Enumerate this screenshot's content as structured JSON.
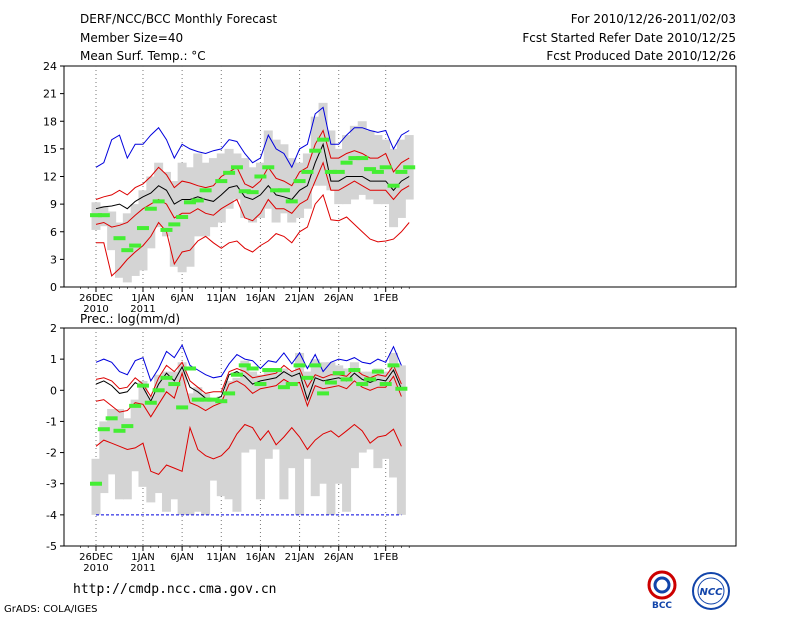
{
  "header": {
    "title": "DERF/NCC/BCC Monthly Forecast",
    "member": "Member Size=40",
    "var1": "Mean Surf. Temp.: °C",
    "period": "For 2010/12/26-2011/02/03",
    "fcst_start": "Fcst Started Refer Date 2010/12/25",
    "fcst_prod": "Fcst Produced Date 2010/12/26"
  },
  "footer": {
    "url": "http://cmdp.ncc.cma.gov.cn",
    "grads": "GrADS: COLA/IGES"
  },
  "logos": {
    "bcc": "BCC",
    "ncc": "NCC"
  },
  "colors": {
    "bar": "#d4d4d4",
    "green": "#44ee33",
    "blue": "#0000dd",
    "red": "#dd0000",
    "black": "#000000"
  },
  "chart_data": [
    {
      "type": "line",
      "title": "Mean Surf. Temp.: °C",
      "ylim": [
        0,
        24
      ],
      "yticks": [
        0,
        3,
        6,
        9,
        12,
        15,
        18,
        21,
        24
      ],
      "xticks": [
        {
          "day": 0,
          "label": "26DEC",
          "sub": "2010"
        },
        {
          "day": 6,
          "label": "1JAN",
          "sub": "2011"
        },
        {
          "day": 11,
          "label": "6JAN",
          "sub": ""
        },
        {
          "day": 16,
          "label": "11JAN",
          "sub": ""
        },
        {
          "day": 21,
          "label": "16JAN",
          "sub": ""
        },
        {
          "day": 26,
          "label": "21JAN",
          "sub": ""
        },
        {
          "day": 31,
          "label": "26JAN",
          "sub": ""
        },
        {
          "day": 37,
          "label": "1FEB",
          "sub": ""
        }
      ],
      "series": [
        {
          "name": "max",
          "values": [
            13.0,
            13.5,
            16.0,
            16.5,
            14.0,
            15.5,
            15.5,
            16.5,
            17.3,
            16.0,
            14.0,
            15.5,
            15.0,
            14.7,
            14.5,
            14.8,
            15.0,
            16.0,
            15.8,
            14.5,
            13.5,
            14.0,
            16.5,
            15.0,
            14.5,
            13.0,
            15.0,
            15.5,
            18.8,
            19.5,
            15.5,
            15.5,
            16.5,
            17.3,
            17.3,
            17.0,
            16.8,
            17.0,
            15.0,
            16.5,
            17.0
          ]
        },
        {
          "name": "upper",
          "values": [
            9.5,
            9.8,
            10.0,
            10.5,
            10.0,
            10.8,
            11.2,
            12.0,
            13.0,
            12.2,
            10.8,
            11.5,
            11.3,
            11.0,
            10.8,
            11.0,
            12.0,
            12.5,
            13.0,
            11.2,
            10.8,
            11.5,
            13.0,
            11.8,
            11.5,
            11.0,
            12.5,
            13.0,
            15.5,
            17.0,
            14.0,
            14.0,
            14.5,
            14.8,
            14.5,
            14.0,
            14.0,
            14.5,
            12.5,
            13.5,
            14.0
          ]
        },
        {
          "name": "mean",
          "values": [
            8.5,
            8.7,
            8.8,
            9.0,
            8.5,
            9.3,
            9.8,
            10.2,
            11.0,
            10.5,
            9.0,
            9.5,
            9.5,
            9.8,
            9.5,
            9.3,
            10.0,
            10.8,
            11.0,
            9.8,
            9.5,
            10.0,
            11.0,
            10.0,
            9.8,
            9.5,
            10.5,
            11.0,
            13.5,
            15.5,
            11.5,
            11.5,
            12.0,
            12.0,
            12.0,
            11.5,
            11.5,
            11.5,
            10.5,
            11.5,
            12.0
          ]
        },
        {
          "name": "lower",
          "values": [
            6.8,
            7.0,
            6.5,
            6.7,
            7.0,
            7.8,
            8.5,
            9.0,
            9.5,
            9.0,
            7.5,
            8.0,
            8.0,
            8.5,
            8.0,
            7.8,
            8.5,
            9.0,
            9.5,
            7.5,
            7.2,
            8.0,
            9.5,
            8.5,
            8.5,
            8.0,
            9.0,
            9.5,
            11.5,
            13.5,
            10.5,
            10.5,
            11.0,
            11.5,
            11.0,
            10.5,
            10.5,
            10.5,
            9.5,
            10.5,
            11.0
          ]
        },
        {
          "name": "min",
          "values": [
            4.8,
            4.8,
            1.2,
            2.0,
            3.0,
            3.8,
            4.5,
            5.5,
            7.0,
            6.0,
            2.5,
            3.8,
            4.0,
            5.0,
            5.5,
            4.8,
            4.2,
            4.8,
            5.0,
            4.2,
            3.8,
            4.5,
            5.0,
            5.8,
            5.5,
            4.8,
            6.0,
            6.5,
            9.0,
            10.0,
            7.3,
            7.2,
            7.6,
            6.8,
            6.0,
            5.2,
            4.9,
            5.0,
            5.2,
            6.0,
            7.0
          ]
        },
        {
          "name": "observed",
          "values": [
            7.8,
            7.8,
            null,
            5.3,
            4.0,
            4.5,
            6.4,
            8.5,
            9.3,
            6.2,
            6.8,
            7.6,
            9.2,
            9.4,
            10.5,
            null,
            11.5,
            12.4,
            13.0,
            10.4,
            10.3,
            12.0,
            13.0,
            10.5,
            10.5,
            9.3,
            11.5,
            12.5,
            14.8,
            16.0,
            12.5,
            12.5,
            13.5,
            14.0,
            14.0,
            12.8,
            12.5,
            13.0,
            11.0,
            12.5,
            13.0
          ]
        }
      ],
      "ranges": [
        [
          6.2,
          9.2
        ],
        [
          6.6,
          8.8
        ],
        [
          4.0,
          8.2
        ],
        [
          1.0,
          7.0
        ],
        [
          0.5,
          8.0
        ],
        [
          1.2,
          9.0
        ],
        [
          1.8,
          10.5
        ],
        [
          4.2,
          12.0
        ],
        [
          6.5,
          13.5
        ],
        [
          5.5,
          12.5
        ],
        [
          2.2,
          11.5
        ],
        [
          1.6,
          13.5
        ],
        [
          2.2,
          13.0
        ],
        [
          5.5,
          14.5
        ],
        [
          5.5,
          13.5
        ],
        [
          6.5,
          14.0
        ],
        [
          7.0,
          14.5
        ],
        [
          8.5,
          15.0
        ],
        [
          9.5,
          14.5
        ],
        [
          7.5,
          14.0
        ],
        [
          7.0,
          13.0
        ],
        [
          7.5,
          13.5
        ],
        [
          8.5,
          17.0
        ],
        [
          7.0,
          16.0
        ],
        [
          8.0,
          15.5
        ],
        [
          7.0,
          14.0
        ],
        [
          7.5,
          13.5
        ],
        [
          8.5,
          14.5
        ],
        [
          11.0,
          18.5
        ],
        [
          11.0,
          20.0
        ],
        [
          10.5,
          17.0
        ],
        [
          9.0,
          15.0
        ],
        [
          9.0,
          16.5
        ],
        [
          9.5,
          17.5
        ],
        [
          10.0,
          18.0
        ],
        [
          9.5,
          17.0
        ],
        [
          9.0,
          16.5
        ],
        [
          9.0,
          16.0
        ],
        [
          6.5,
          15.0
        ],
        [
          7.5,
          16.0
        ],
        [
          9.5,
          16.5
        ]
      ]
    },
    {
      "type": "line",
      "title": "Prec.: log(mm/d)",
      "ylim": [
        -5,
        2
      ],
      "yticks": [
        -5,
        -4,
        -3,
        -2,
        -1,
        0,
        1,
        2
      ],
      "xticks": [
        {
          "day": 0,
          "label": "26DEC",
          "sub": "2010"
        },
        {
          "day": 6,
          "label": "1JAN",
          "sub": "2011"
        },
        {
          "day": 11,
          "label": "6JAN",
          "sub": ""
        },
        {
          "day": 16,
          "label": "11JAN",
          "sub": ""
        },
        {
          "day": 21,
          "label": "16JAN",
          "sub": ""
        },
        {
          "day": 26,
          "label": "21JAN",
          "sub": ""
        },
        {
          "day": 31,
          "label": "26JAN",
          "sub": ""
        },
        {
          "day": 37,
          "label": "1FEB",
          "sub": ""
        }
      ],
      "series": [
        {
          "name": "max",
          "values": [
            0.9,
            1.0,
            0.9,
            0.6,
            0.5,
            0.95,
            1.05,
            0.3,
            0.7,
            1.25,
            1.05,
            1.45,
            0.8,
            0.65,
            0.5,
            0.4,
            0.45,
            0.85,
            1.15,
            1.0,
            0.95,
            0.7,
            0.95,
            0.9,
            1.2,
            0.85,
            1.2,
            0.7,
            1.15,
            0.6,
            0.9,
            1.0,
            0.95,
            1.05,
            0.9,
            0.85,
            1.0,
            0.9,
            1.4,
            0.8
          ]
        },
        {
          "name": "upper",
          "values": [
            0.35,
            0.4,
            0.3,
            0.05,
            0.1,
            0.4,
            0.2,
            -0.2,
            0.4,
            0.8,
            0.6,
            0.9,
            0.3,
            0.1,
            -0.1,
            -0.05,
            -0.05,
            0.6,
            0.7,
            0.6,
            0.4,
            0.45,
            0.5,
            0.55,
            0.8,
            0.6,
            0.7,
            0.1,
            0.5,
            0.4,
            0.5,
            0.5,
            0.45,
            0.7,
            0.5,
            0.4,
            0.5,
            0.45,
            0.8,
            0.2
          ]
        },
        {
          "name": "mean",
          "values": [
            0.2,
            0.3,
            0.15,
            -0.1,
            -0.05,
            0.25,
            0.1,
            -0.35,
            0.2,
            0.55,
            0.3,
            0.75,
            0.1,
            -0.05,
            -0.25,
            -0.3,
            -0.2,
            0.5,
            0.6,
            0.45,
            0.2,
            0.3,
            0.35,
            0.4,
            0.6,
            0.45,
            0.55,
            -0.3,
            0.4,
            0.3,
            0.35,
            0.4,
            0.3,
            0.55,
            0.35,
            0.25,
            0.35,
            0.3,
            0.65,
            0.05
          ]
        },
        {
          "name": "lower",
          "values": [
            -0.35,
            -0.3,
            -0.5,
            -0.7,
            -0.65,
            -0.4,
            -0.45,
            -0.85,
            -0.45,
            -0.05,
            -0.25,
            0.55,
            -0.4,
            -0.5,
            -0.65,
            -0.5,
            -0.4,
            0.2,
            0.3,
            0.15,
            -0.1,
            0.05,
            0.1,
            0.15,
            0.35,
            0.2,
            0.25,
            -0.5,
            0.15,
            0.05,
            0.1,
            0.15,
            0.05,
            0.3,
            0.1,
            0.0,
            0.1,
            0.1,
            0.45,
            -0.2
          ]
        },
        {
          "name": "min",
          "values": [
            -1.8,
            -1.6,
            -1.7,
            -1.8,
            -1.9,
            -1.85,
            -1.7,
            -2.6,
            -2.7,
            -2.4,
            -2.5,
            -2.6,
            -1.2,
            -1.9,
            -2.1,
            -2.2,
            -2.1,
            -1.85,
            -1.4,
            -1.1,
            -1.2,
            -1.6,
            -1.3,
            -1.75,
            -1.5,
            -1.2,
            -1.5,
            -1.9,
            -1.6,
            -1.4,
            -1.3,
            -1.5,
            -1.3,
            -1.1,
            -1.3,
            -1.7,
            -1.5,
            -1.45,
            -1.25,
            -1.8
          ]
        },
        {
          "name": "floor",
          "values": [
            -4,
            -4,
            -4,
            -4,
            -4,
            -4,
            -4,
            -4,
            -4,
            -4,
            -4,
            -4,
            -4,
            -4,
            -4,
            -4,
            -4,
            -4,
            -4,
            -4,
            -4,
            -4,
            -4,
            -4,
            -4,
            -4,
            -4,
            -4,
            -4,
            -4,
            -4,
            -4,
            -4,
            -4,
            -4,
            -4,
            -4,
            -4,
            -4,
            -4
          ]
        },
        {
          "name": "observed",
          "values": [
            -3.0,
            -1.25,
            -0.9,
            -1.3,
            -1.15,
            -0.5,
            0.15,
            -0.4,
            0.0,
            0.4,
            0.2,
            -0.55,
            0.7,
            -0.3,
            -0.3,
            -0.3,
            -0.35,
            -0.1,
            0.5,
            0.8,
            0.7,
            0.2,
            0.65,
            0.65,
            0.1,
            0.2,
            0.8,
            0.4,
            0.8,
            -0.1,
            0.25,
            0.55,
            0.35,
            0.65,
            0.2,
            0.35,
            0.6,
            0.2,
            0.8,
            0.05
          ]
        }
      ],
      "ranges": [
        [
          -4.0,
          -2.2
        ],
        [
          -3.3,
          -1.0
        ],
        [
          -2.7,
          -0.6
        ],
        [
          -3.5,
          -0.6
        ],
        [
          -3.5,
          -0.9
        ],
        [
          -2.6,
          -0.3
        ],
        [
          -3.1,
          0.3
        ],
        [
          -3.6,
          -0.2
        ],
        [
          -3.3,
          0.5
        ],
        [
          -3.9,
          0.6
        ],
        [
          -3.5,
          0.6
        ],
        [
          -4.0,
          0.9
        ],
        [
          -4.0,
          -0.1
        ],
        [
          -3.9,
          0.1
        ],
        [
          -4.0,
          -0.1
        ],
        [
          -2.9,
          -0.3
        ],
        [
          -3.4,
          -0.2
        ],
        [
          -3.5,
          0.3
        ],
        [
          -3.9,
          0.4
        ],
        [
          -2.0,
          0.95
        ],
        [
          -1.9,
          0.6
        ],
        [
          -3.5,
          0.5
        ],
        [
          -2.2,
          0.6
        ],
        [
          -1.9,
          0.6
        ],
        [
          -3.5,
          0.7
        ],
        [
          -2.5,
          0.6
        ],
        [
          -4.0,
          1.2
        ],
        [
          -2.2,
          0.6
        ],
        [
          -3.4,
          1.0
        ],
        [
          -3.0,
          0.9
        ],
        [
          -4.0,
          0.9
        ],
        [
          -3.0,
          0.8
        ],
        [
          -3.9,
          0.7
        ],
        [
          -2.5,
          0.9
        ],
        [
          -2.0,
          0.6
        ],
        [
          -1.9,
          0.6
        ],
        [
          -2.5,
          0.7
        ],
        [
          -2.2,
          0.6
        ],
        [
          -2.8,
          1.2
        ],
        [
          -4.0,
          0.8
        ]
      ]
    }
  ]
}
